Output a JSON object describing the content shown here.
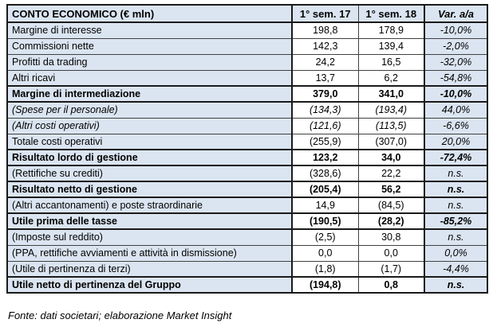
{
  "table": {
    "title": "CONTO ECONOMICO (€ mln)",
    "columns": [
      "1° sem. 17",
      "1° sem. 18",
      "Var. a/a"
    ],
    "rows": [
      {
        "label": "Margine di interesse",
        "s17": "198,8",
        "s18": "178,9",
        "yoy": "-10,0%",
        "style": "normal"
      },
      {
        "label": "Commissioni nette",
        "s17": "142,3",
        "s18": "139,4",
        "yoy": "-2,0%",
        "style": "normal"
      },
      {
        "label": "Profitti da trading",
        "s17": "24,2",
        "s18": "16,5",
        "yoy": "-32,0%",
        "style": "normal"
      },
      {
        "label": "Altri ricavi",
        "s17": "13,7",
        "s18": "6,2",
        "yoy": "-54,8%",
        "style": "normal"
      },
      {
        "label": "Margine di intermediazione",
        "s17": "379,0",
        "s18": "341,0",
        "yoy": "-10,0%",
        "style": "bold"
      },
      {
        "label": "(Spese per il personale)",
        "s17": "(134,3)",
        "s18": "(193,4)",
        "yoy": "44,0%",
        "style": "italic"
      },
      {
        "label": "(Altri costi operativi)",
        "s17": "(121,6)",
        "s18": "(113,5)",
        "yoy": "-6,6%",
        "style": "italic"
      },
      {
        "label": "Totale costi operativi",
        "s17": "(255,9)",
        "s18": "(307,0)",
        "yoy": "20,0%",
        "style": "normal"
      },
      {
        "label": "Risultato lordo di gestione",
        "s17": "123,2",
        "s18": "34,0",
        "yoy": "-72,4%",
        "style": "bold"
      },
      {
        "label": "(Rettifiche su crediti)",
        "s17": "(328,6)",
        "s18": "22,2",
        "yoy": "n.s.",
        "style": "normal"
      },
      {
        "label": "Risultato netto di gestione",
        "s17": "(205,4)",
        "s18": "56,2",
        "yoy": "n.s.",
        "style": "bold"
      },
      {
        "label": "(Altri accantonamenti) e poste straordinarie",
        "s17": "14,9",
        "s18": "(84,5)",
        "yoy": "n.s.",
        "style": "normal"
      },
      {
        "label": "Utile prima delle tasse",
        "s17": "(190,5)",
        "s18": "(28,2)",
        "yoy": "-85,2%",
        "style": "bold"
      },
      {
        "label": "(Imposte sul reddito)",
        "s17": "(2,5)",
        "s18": "30,8",
        "yoy": "n.s.",
        "style": "normal"
      },
      {
        "label": "(PPA, rettifiche avviamenti e attività in dismissione)",
        "s17": "0,0",
        "s18": "0,0",
        "yoy": "0,0%",
        "style": "normal"
      },
      {
        "label": "(Utile di pertinenza di terzi)",
        "s17": "(1,8)",
        "s18": "(1,7)",
        "yoy": "-4,4%",
        "style": "normal"
      },
      {
        "label": "Utile netto di pertinenza del Gruppo",
        "s17": "(194,8)",
        "s18": "0,8",
        "yoy": "n.s.",
        "style": "bold"
      }
    ]
  },
  "footer": "Fonte: dati societari; elaborazione Market Insight",
  "colors": {
    "row_fill_blue": "#dbe5f1",
    "cell_fill_white": "#ffffff",
    "border_thin": "#404040",
    "border_thick": "#1a1a1a",
    "text": "#000000"
  }
}
